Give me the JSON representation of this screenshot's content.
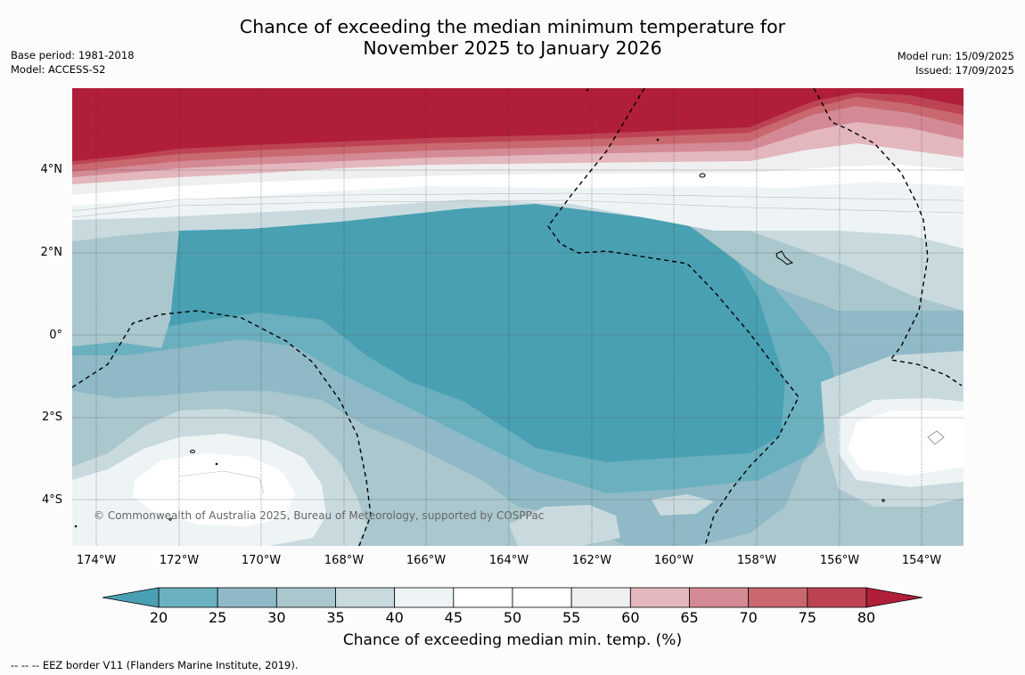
{
  "title_line1": "Chance of exceeding the median minimum temperature for",
  "title_line2": "November 2025 to January 2026",
  "meta_left": {
    "base_period": "Base period: 1981-2018",
    "model": "Model: ACCESS-S2"
  },
  "meta_right": {
    "model_run": "Model run: 15/09/2025",
    "issued": "Issued: 17/09/2025"
  },
  "map": {
    "lat_labels": [
      "4°N",
      "2°N",
      "0°",
      "2°S",
      "4°S"
    ],
    "lon_labels": [
      "174°W",
      "172°W",
      "170°W",
      "168°W",
      "166°W",
      "164°W",
      "162°W",
      "160°W",
      "158°W",
      "156°W",
      "154°W"
    ],
    "copyright": "© Commonwealth of Australia 2025, Bureau of Meteorology, supported by COSPPac"
  },
  "colorbar": {
    "label": "Chance of exceeding median min. temp. (%)",
    "ticks": [
      "20",
      "25",
      "30",
      "35",
      "40",
      "45",
      "50",
      "55",
      "60",
      "65",
      "70",
      "75",
      "80"
    ],
    "under_color": "#49a0b3",
    "over_color": "#b01e39",
    "colors": [
      "#6bb0bf",
      "#8fb9c6",
      "#a9c7cd",
      "#c9dade",
      "#eef4f5",
      "#ffffff",
      "#ffffff",
      "#efefef",
      "#e3b7bd",
      "#d48a95",
      "#c9686f",
      "#bd4354"
    ]
  },
  "footnote": "--  --  -- EEZ border V11 (Flanders Marine Institute, 2019)."
}
